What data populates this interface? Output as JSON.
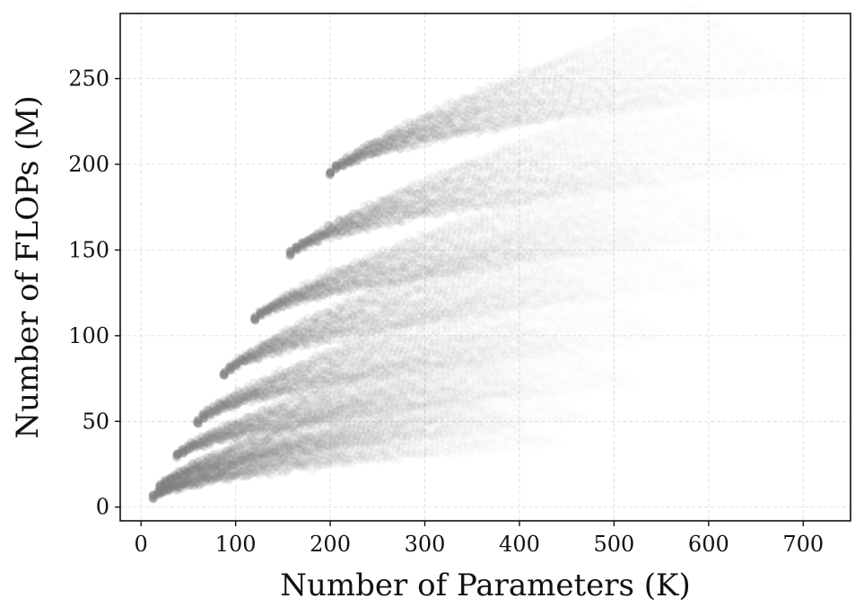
{
  "chart_data": {
    "type": "scatter",
    "title": "",
    "xlabel": "Number of Parameters (K)",
    "ylabel": "Number of FLOPs (M)",
    "xlim": [
      -22,
      750
    ],
    "ylim": [
      -8,
      288
    ],
    "xticks": [
      0,
      100,
      200,
      300,
      400,
      500,
      600,
      700
    ],
    "yticks": [
      0,
      50,
      100,
      150,
      200,
      250
    ],
    "grid": true,
    "legend": false,
    "marker_color": "#808080",
    "series": [
      {
        "clusters": [
          {
            "start": [
              13,
              6
            ],
            "end": [
              440,
              55
            ]
          },
          {
            "start": [
              20,
              12
            ],
            "end": [
              470,
              75
            ]
          },
          {
            "start": [
              38,
              30
            ],
            "end": [
              520,
              95
            ]
          },
          {
            "start": [
              60,
              50
            ],
            "end": [
              560,
              125
            ]
          },
          {
            "start": [
              88,
              78
            ],
            "end": [
              600,
              160
            ]
          },
          {
            "start": [
              120,
              110
            ],
            "end": [
              640,
              185
            ]
          },
          {
            "start": [
              158,
              148
            ],
            "end": [
              670,
              225
            ]
          },
          {
            "start": [
              200,
              195
            ],
            "end": [
              715,
              275
            ]
          }
        ]
      }
    ]
  }
}
